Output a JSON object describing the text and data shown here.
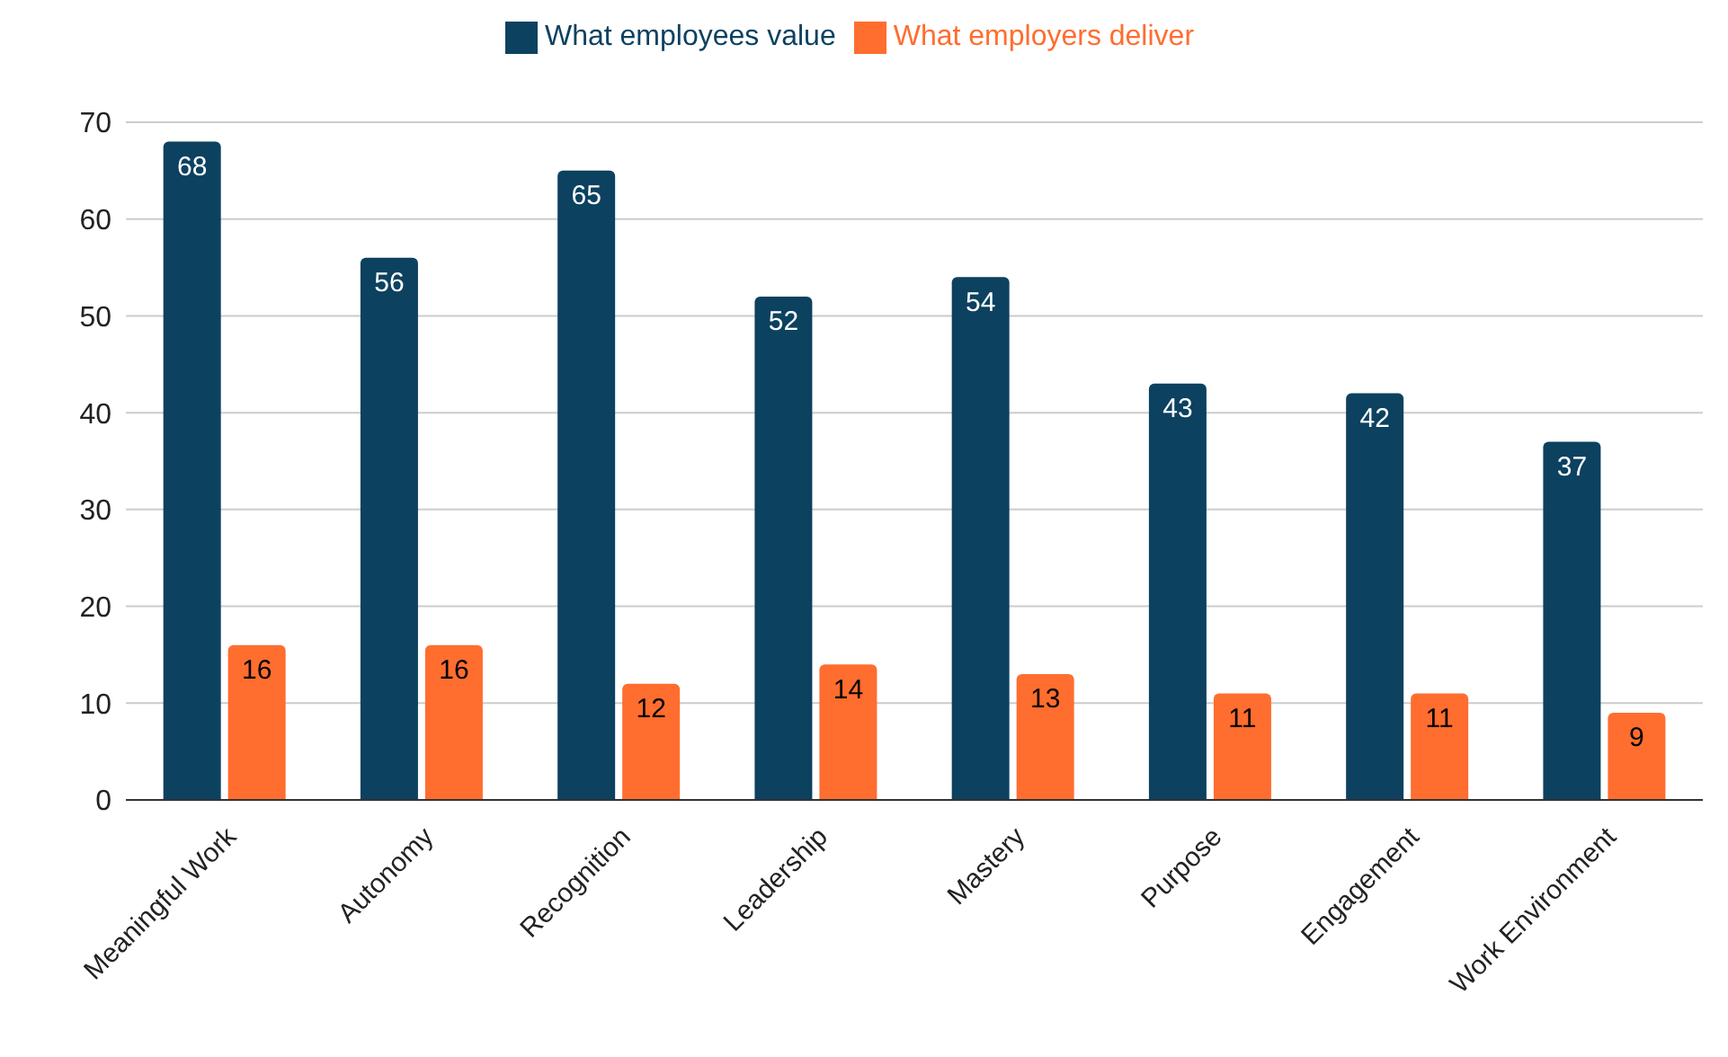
{
  "chart_data": {
    "type": "bar",
    "categories": [
      "Meaningful Work",
      "Autonomy",
      "Recognition",
      "Leadership",
      "Mastery",
      "Purpose",
      "Engagement",
      "Work Environment"
    ],
    "series": [
      {
        "name": "What employees value",
        "color": "#0c4160",
        "values": [
          68,
          56,
          65,
          52,
          54,
          43,
          42,
          37
        ]
      },
      {
        "name": "What employers deliver",
        "color": "#ff6d2f",
        "values": [
          16,
          16,
          12,
          14,
          13,
          11,
          11,
          9
        ]
      }
    ],
    "ylim": [
      0,
      70
    ],
    "yticks": [
      0,
      10,
      20,
      30,
      40,
      50,
      60,
      70
    ],
    "grid": "y",
    "legend": "top",
    "data_labels": true
  }
}
